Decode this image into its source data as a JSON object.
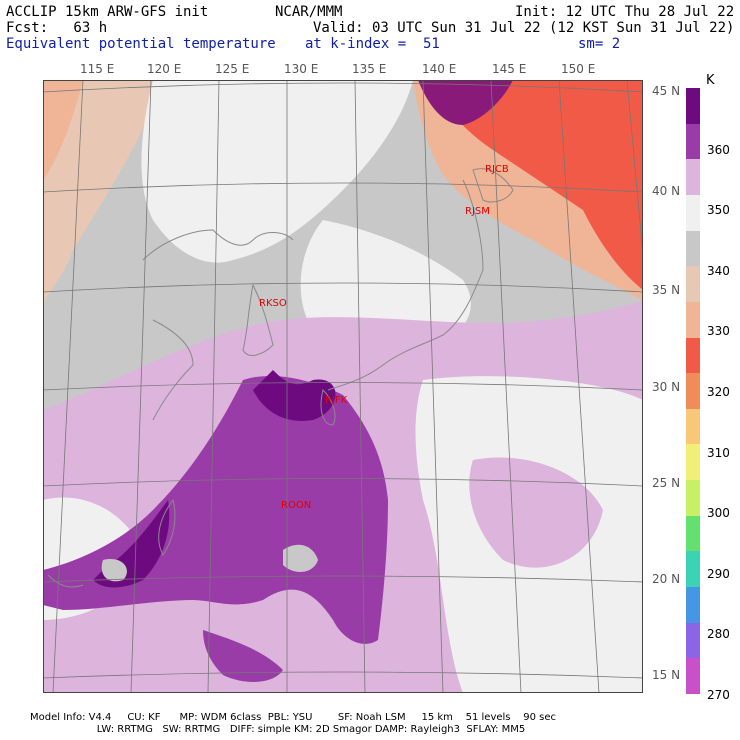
{
  "header": {
    "line1_left": "ACCLIP 15km ARW-GFS init",
    "line1_mid": "NCAR/MMM",
    "line1_right": "Init: 12 UTC Thu 28 Jul 22",
    "line2_left": "Fcst:   63 h",
    "line2_right": "Valid: 03 UTC Sun 31 Jul 22 (12 KST Sun 31 Jul 22)",
    "line3_left": "Equivalent potential temperature",
    "line3_mid": "at k-index =  51",
    "line3_right": "sm= 2"
  },
  "map": {
    "lon_labels": [
      "115 E",
      "120 E",
      "125 E",
      "130 E",
      "135 E",
      "140 E",
      "145 E",
      "150 E"
    ],
    "lat_labels": [
      "45 N",
      "40 N",
      "35 N",
      "30 N",
      "25 N",
      "20 N",
      "15 N"
    ],
    "stations": [
      {
        "id": "RJCB"
      },
      {
        "id": "RJSM"
      },
      {
        "id": "RKSO"
      },
      {
        "id": "RJFK"
      },
      {
        "id": "ROON"
      }
    ]
  },
  "colorbar": {
    "unit": "K",
    "levels": [
      "360",
      "350",
      "340",
      "330",
      "320",
      "310",
      "300",
      "290",
      "280",
      "270"
    ],
    "colors": [
      "#6e0a80",
      "#9a3ca8",
      "#dcb4dc",
      "#f0f0f0",
      "#c8c8c8",
      "#e6c8b4",
      "#f0b496",
      "#f05a46",
      "#f08c5a",
      "#f8c878",
      "#f0f078",
      "#c8f064",
      "#64e06e",
      "#3cd2b4",
      "#4696e6",
      "#8c64e6",
      "#c850c8"
    ]
  },
  "footer": {
    "line1": "Model Info: V4.4     CU: KF      MP: WDM 6class  PBL: YSU        SF: Noah LSM     15 km    51 levels    90 sec",
    "line2": "                     LW: RRTMG   SW: RRTMG   DIFF: simple KM: 2D Smagor DAMP: Rayleigh3  SFLAY: MM5"
  }
}
